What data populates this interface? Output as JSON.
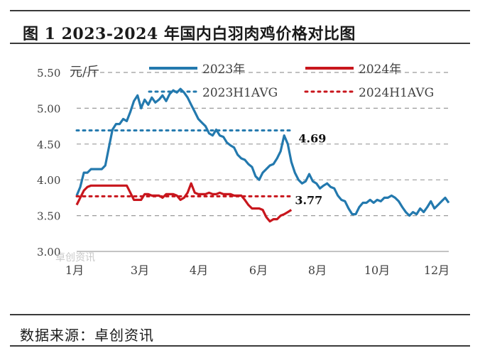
{
  "title": "图 1 2023-2024 年国内白羽肉鸡价格对比图",
  "source": "数据来源：卓创资讯",
  "watermark": "卓创资讯",
  "colors": {
    "s2023": "#2379ae",
    "s2024": "#c8161d",
    "grid": "#9a9a9a",
    "text": "#404040"
  },
  "chart_data": {
    "type": "line",
    "ylabel": "元/斤",
    "ylim": [
      3.0,
      5.5
    ],
    "yticks": [
      "3.00",
      "3.50",
      "4.00",
      "4.50",
      "5.00",
      "5.50"
    ],
    "ytick_values": [
      3.0,
      3.5,
      4.0,
      4.5,
      5.0,
      5.5
    ],
    "xlim": [
      0,
      52
    ],
    "xticks": [
      "1月",
      "3月",
      "4月",
      "6月",
      "8月",
      "10月",
      "12月"
    ],
    "xtick_positions": [
      1,
      10,
      20,
      30,
      40,
      50,
      60
    ],
    "grid": true,
    "legend_position": "top",
    "series": [
      {
        "name": "2023年",
        "style": "solid",
        "x": [
          0,
          0.5,
          1,
          1.5,
          2,
          2.5,
          3,
          3.5,
          4,
          4.5,
          5,
          5.5,
          6,
          6.5,
          7,
          7.5,
          8,
          8.5,
          9,
          9.5,
          10,
          10.5,
          11,
          11.5,
          12,
          12.5,
          13,
          13.5,
          14,
          14.5,
          15,
          15.5,
          16,
          16.5,
          17,
          17.5,
          18,
          18.5,
          19,
          19.5,
          20,
          20.5,
          21,
          21.5,
          22,
          22.5,
          23,
          23.5,
          24,
          24.5,
          25,
          25.5,
          26,
          26.5,
          27,
          27.5,
          28,
          28.5,
          29,
          29.5,
          30,
          30.5,
          31,
          31.5,
          32,
          32.5,
          33,
          33.5,
          34,
          34.5,
          35,
          35.5,
          36,
          36.5,
          37,
          37.5,
          38,
          38.5,
          39,
          39.5,
          40,
          40.5,
          41,
          41.5,
          42,
          42.5,
          43,
          43.5,
          44,
          44.5,
          45,
          45.5,
          46,
          46.5,
          47,
          47.5,
          48,
          48.5,
          49,
          49.5,
          50,
          50.5,
          51,
          51.5,
          52
        ],
        "y": [
          3.78,
          3.9,
          4.1,
          4.1,
          4.15,
          4.15,
          4.15,
          4.15,
          4.2,
          4.45,
          4.7,
          4.78,
          4.78,
          4.85,
          4.82,
          4.95,
          5.1,
          5.18,
          5.0,
          5.12,
          5.05,
          5.15,
          5.08,
          5.12,
          5.18,
          5.1,
          5.2,
          5.25,
          5.22,
          5.27,
          5.22,
          5.15,
          5.05,
          4.95,
          4.85,
          4.8,
          4.75,
          4.65,
          4.62,
          4.7,
          4.62,
          4.6,
          4.52,
          4.48,
          4.45,
          4.35,
          4.3,
          4.28,
          4.22,
          4.18,
          4.05,
          4.0,
          4.1,
          4.15,
          4.2,
          4.22,
          4.3,
          4.4,
          4.62,
          4.5,
          4.25,
          4.1,
          4.0,
          3.95,
          3.98,
          4.08,
          3.98,
          3.95,
          3.88,
          3.92,
          3.95,
          3.9,
          3.88,
          3.78,
          3.72,
          3.7,
          3.6,
          3.52,
          3.52,
          3.62,
          3.68,
          3.68,
          3.72,
          3.68,
          3.72,
          3.7,
          3.75,
          3.75,
          3.78,
          3.75,
          3.7,
          3.62,
          3.55,
          3.5,
          3.55,
          3.52,
          3.6,
          3.55,
          3.62,
          3.7,
          3.6,
          3.65,
          3.7,
          3.75,
          3.68
        ]
      },
      {
        "name": "2024年",
        "style": "solid",
        "x": [
          0,
          0.5,
          1,
          1.5,
          2,
          2.5,
          3,
          3.5,
          4,
          4.5,
          5,
          5.5,
          6,
          6.5,
          7,
          7.5,
          8,
          8.5,
          9,
          9.5,
          10,
          10.5,
          11,
          11.5,
          12,
          12.5,
          13,
          13.5,
          14,
          14.5,
          15,
          15.5,
          16,
          16.5,
          17,
          17.5,
          18,
          18.5,
          19,
          19.5,
          20,
          20.5,
          21,
          21.5,
          22,
          22.5,
          23,
          23.5,
          24,
          24.5,
          25,
          25.5,
          26,
          26.5,
          27,
          27.5,
          28,
          28.5,
          29,
          29.5,
          30
        ],
        "y": [
          3.65,
          3.75,
          3.85,
          3.9,
          3.92,
          3.92,
          3.92,
          3.92,
          3.92,
          3.92,
          3.92,
          3.92,
          3.92,
          3.92,
          3.92,
          3.82,
          3.72,
          3.72,
          3.72,
          3.8,
          3.8,
          3.78,
          3.78,
          3.78,
          3.75,
          3.8,
          3.8,
          3.8,
          3.78,
          3.72,
          3.75,
          3.82,
          3.95,
          3.82,
          3.8,
          3.8,
          3.8,
          3.82,
          3.8,
          3.8,
          3.82,
          3.8,
          3.8,
          3.8,
          3.78,
          3.78,
          3.78,
          3.72,
          3.65,
          3.6,
          3.6,
          3.6,
          3.58,
          3.48,
          3.42,
          3.45,
          3.45,
          3.5,
          3.52,
          3.55,
          3.58
        ]
      },
      {
        "name": "2023H1AVG",
        "style": "dotted",
        "x": [
          0,
          30
        ],
        "y": [
          4.69,
          4.69
        ]
      },
      {
        "name": "2024H1AVG",
        "style": "dotted",
        "x": [
          0,
          30
        ],
        "y": [
          3.77,
          3.77
        ]
      }
    ],
    "annotations": [
      {
        "text": "4.69",
        "x": 31,
        "y": 4.58
      },
      {
        "text": "3.77",
        "x": 30.5,
        "y": 3.72
      }
    ]
  }
}
